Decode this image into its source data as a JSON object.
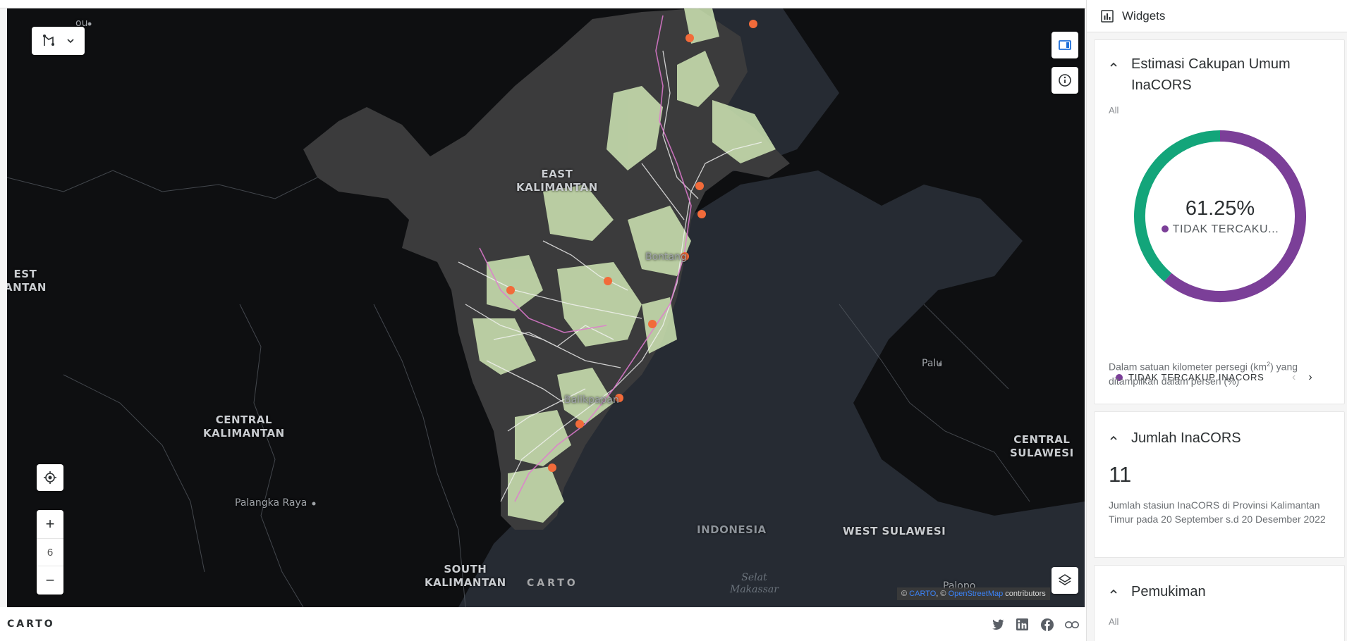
{
  "map": {
    "region_labels": [
      {
        "id": "east-kalimantan",
        "text": "EAST\nKALIMANTAN"
      },
      {
        "id": "central-kalimantan",
        "text": "CENTRAL\nKALIMANTAN"
      },
      {
        "id": "south-kalimantan",
        "text": "SOUTH\nKALIMANTAN"
      },
      {
        "id": "central-sulawesi",
        "text": "CENTRAL\nSULAWESI"
      },
      {
        "id": "west-sulawesi",
        "text": "WEST SULAWESI"
      },
      {
        "id": "west-kalimantan-partial",
        "text": "EST\nANTAN"
      },
      {
        "id": "indonesia",
        "text": "INDONESIA"
      }
    ],
    "city_labels": [
      "Bontang",
      "Balikpapan",
      "Palu",
      "Palangka Raya",
      "Palopo",
      "ou"
    ],
    "sea_label": "Selat\nMakassar",
    "zoom_level": "6",
    "watermark": "CARTO",
    "attribution": {
      "prefix": "©",
      "carto": "CARTO",
      "sep": ", ©",
      "osm": "OpenStreetMap",
      "suffix": "contributors"
    },
    "colors": {
      "land_bg": "#0e0f11",
      "province": "#3b3b3c",
      "sea": "#262b33",
      "coverage": "#cfe6b4",
      "roads": "#ffffff",
      "marker": "#f26b3a"
    }
  },
  "footer": {
    "logo": "CARTO",
    "icons": [
      "twitter-icon",
      "linkedin-icon",
      "facebook-icon",
      "link-icon"
    ]
  },
  "panel": {
    "header_title": "Widgets",
    "widgets": [
      {
        "title": "Estimasi Cakupan Umum InaCORS",
        "filter": "All",
        "donut_value": "61.25%",
        "donut_label": "TIDAK TERCAKU...",
        "legend_label": "TIDAK TERCAKUP INACORS",
        "desc_pre": "Dalam satuan kilometer persegi (km",
        "desc_sup": "2",
        "desc_post": ") yang ditampilkan dalam persen (%)",
        "segments": [
          {
            "name": "TIDAK TERCAKUP INACORS",
            "value": 61.25,
            "color": "#7b3f98"
          },
          {
            "value": 38.75,
            "color": "#13a57a"
          }
        ]
      },
      {
        "title": "Jumlah InaCORS",
        "value": "11",
        "desc": "Jumlah stasiun InaCORS di Provinsi Kalimantan Timur pada 20 September s.d 20 Desember 2022"
      },
      {
        "title": "Pemukiman",
        "filter": "All"
      }
    ]
  }
}
